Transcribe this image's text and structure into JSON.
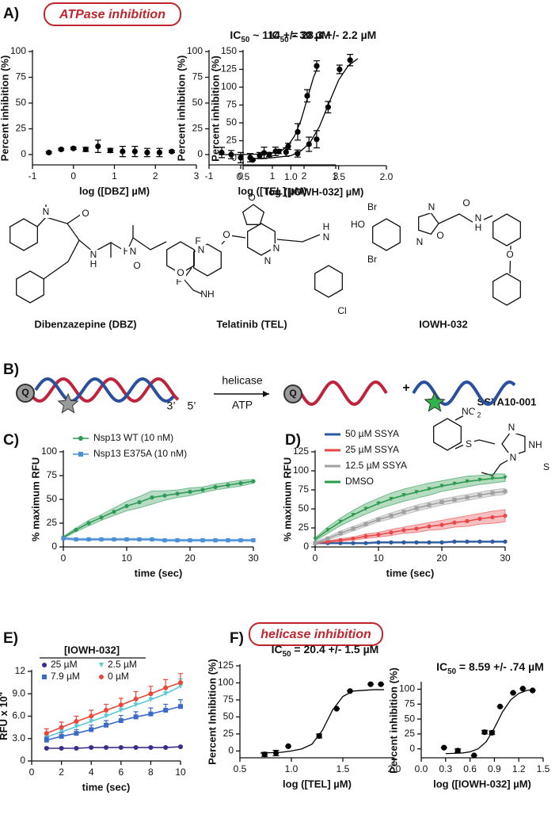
{
  "panels": [
    "A)",
    "B)",
    "C)",
    "D)",
    "E)",
    "F)"
  ],
  "badges": [
    "ATPase inhibition",
    "helicase inhibition"
  ],
  "scheme": {
    "labels": [
      "Q",
      "3’",
      "5’",
      "helicase",
      "ATP",
      "Q",
      "+"
    ]
  },
  "structures": [
    {
      "name": "Dibenzazepine (DBZ)",
      "atoms": [
        "N",
        "O",
        "N",
        "H",
        "H",
        "N",
        "O",
        "F",
        "F"
      ]
    },
    {
      "name": "Telatinib (TEL)",
      "atoms": [
        "O",
        "O",
        "N",
        "N",
        "N",
        "O",
        "NH",
        "H",
        "N",
        "Cl"
      ]
    },
    {
      "name": "IOWH-032",
      "atoms": [
        "Br",
        "HO",
        "Br",
        "N",
        "O",
        "N",
        "O",
        "N",
        "H",
        "O"
      ]
    },
    {
      "name": "SSYA10-001",
      "atoms": [
        "NO",
        "2",
        "S",
        "N",
        "NH",
        "N",
        "S"
      ]
    }
  ],
  "chart_data": [
    {
      "type": "scatter",
      "xlabel": "log ([DBZ] µM)",
      "ylabel": "Percent inhibition (%)",
      "color": "#000000",
      "x": [
        -0.6,
        -0.3,
        0,
        0.3,
        0.6,
        0.9,
        1.2,
        1.5,
        1.8,
        2.1,
        2.4
      ],
      "values": [
        2,
        5,
        6,
        5,
        8,
        4,
        3,
        3,
        2,
        2,
        3
      ],
      "errors": [
        1,
        1,
        1,
        2,
        6,
        2,
        5,
        5,
        4,
        4,
        1
      ],
      "xlim": [
        -1,
        3
      ],
      "xticks": [
        -1,
        0,
        1,
        2,
        3
      ],
      "ylim": [
        -10,
        100
      ],
      "yticks": [
        0,
        25,
        50,
        75,
        100
      ]
    },
    {
      "type": "scatter",
      "title_parts": [
        "IC",
        "50",
        " ~ 114 +/- 30 µM"
      ],
      "xlabel": "log ([TEL] µM)",
      "ylabel": "Percent inhibition (%)",
      "color": "#000000",
      "x": [
        -0.6,
        -0.3,
        0,
        0.3,
        0.6,
        0.9,
        1.2,
        1.5,
        1.8,
        2.1,
        2.4
      ],
      "values": [
        2,
        0,
        -3,
        -3,
        -1,
        0,
        3,
        8,
        22,
        57,
        86
      ],
      "errors": [
        5,
        4,
        5,
        4,
        3,
        2,
        2,
        3,
        8,
        6,
        5
      ],
      "fit": {
        "x": [
          -0.7,
          0,
          0.6,
          1.0,
          1.3,
          1.5,
          1.7,
          1.9,
          2.1,
          2.3,
          2.45
        ],
        "y": [
          0,
          0,
          0.5,
          1.5,
          4,
          9,
          18,
          33,
          54,
          75,
          86
        ]
      },
      "xlim": [
        -1,
        3
      ],
      "xticks": [
        -1,
        0,
        1,
        2,
        3
      ],
      "ylim": [
        -10,
        100
      ],
      "yticks": [
        0,
        25,
        50,
        75,
        100
      ]
    },
    {
      "type": "scatter",
      "title_parts": [
        "IC",
        "50",
        " = 28.3 +/- 2.2 µM"
      ],
      "xlabel": "log ([IOWH-032] µM)",
      "ylabel": "Percent inhibition (%)",
      "color": "#000000",
      "x": [
        0.6,
        0.72,
        0.84,
        0.95,
        1.07,
        1.19,
        1.27,
        1.39,
        1.51,
        1.62
      ],
      "values": [
        -2,
        8,
        10,
        9,
        7,
        20,
        27,
        72,
        125,
        138
      ],
      "errors": [
        1,
        8,
        6,
        6,
        5,
        10,
        12,
        8,
        6,
        8
      ],
      "fit": {
        "x": [
          0.6,
          0.8,
          1.0,
          1.1,
          1.2,
          1.3,
          1.4,
          1.5,
          1.6,
          1.7
        ],
        "y": [
          0,
          1,
          4,
          10,
          22,
          45,
          78,
          110,
          130,
          140
        ]
      },
      "xlim": [
        0.5,
        2.0
      ],
      "xticks": [
        0.5,
        {
          "value": 1.0,
          "label": "1.0"
        },
        1.5,
        {
          "value": 2.0,
          "label": "2.0"
        }
      ],
      "ylim": [
        -10,
        150
      ],
      "yticks": [
        0,
        25,
        50,
        75,
        100,
        125,
        150
      ]
    },
    {
      "type": "line",
      "xlabel": "time (sec)",
      "ylabel": "% maximum RFU",
      "error_style": "band",
      "legend": "upper-left",
      "x": [
        0,
        2,
        4,
        6,
        8,
        10,
        12,
        14,
        16,
        18,
        20,
        22,
        24,
        26,
        28,
        30
      ],
      "series": [
        {
          "name": "Nsp13 WT (10 nM)",
          "color": "#2e9a55",
          "marker": "circle",
          "values": [
            10,
            18,
            25,
            31,
            37,
            43,
            47,
            52,
            54,
            56,
            58,
            60,
            63,
            65,
            67,
            69
          ],
          "errors": [
            1,
            2,
            3,
            3,
            4,
            5,
            6,
            7,
            5,
            4,
            4,
            3,
            3,
            3,
            3,
            2
          ]
        },
        {
          "name": "Nsp13 E375A (10 nM)",
          "color": "#4a90d9",
          "marker": "square",
          "values": [
            9,
            8,
            8,
            8,
            8,
            8,
            8,
            8,
            7,
            7,
            7,
            7,
            7,
            7,
            7,
            7
          ],
          "errors": [
            1,
            1,
            1,
            1,
            1,
            1,
            1,
            1,
            1,
            1,
            1,
            1,
            1,
            1,
            1,
            1
          ]
        }
      ],
      "xlim": [
        0,
        30
      ],
      "xticks": [
        0,
        10,
        20,
        30
      ],
      "ylim": [
        0,
        100
      ],
      "yticks": [
        0,
        25,
        50,
        75,
        100
      ]
    },
    {
      "type": "line",
      "xlabel": "time (sec)",
      "ylabel": "% maximum RFU",
      "error_style": "band",
      "legend": "upper-left",
      "x": [
        0,
        2,
        4,
        6,
        8,
        10,
        12,
        14,
        16,
        18,
        20,
        22,
        24,
        26,
        28,
        30
      ],
      "series": [
        {
          "name": "50 µM SSYA",
          "color": "#2b5a9e",
          "marker": "circle",
          "values": [
            5,
            5,
            5,
            5,
            5,
            6,
            6,
            6,
            6,
            6,
            6,
            7,
            7,
            7,
            7,
            7
          ],
          "errors": [
            1,
            1,
            1,
            1,
            1,
            1,
            1,
            1,
            1,
            1,
            1,
            1,
            1,
            1,
            1,
            1
          ]
        },
        {
          "name": "25 µM SSYA",
          "color": "#e8474a",
          "marker": "circle",
          "values": [
            5,
            7,
            9,
            11,
            14,
            16,
            19,
            22,
            24,
            27,
            29,
            32,
            34,
            37,
            39,
            41
          ],
          "errors": [
            1,
            1,
            2,
            2,
            3,
            3,
            4,
            4,
            5,
            5,
            6,
            6,
            7,
            7,
            8,
            8
          ]
        },
        {
          "name": "12.5 µM SSYA",
          "color": "#a0a0a0",
          "marker": "square",
          "values": [
            5,
            11,
            18,
            24,
            30,
            36,
            41,
            46,
            51,
            55,
            59,
            62,
            65,
            68,
            71,
            73
          ],
          "errors": [
            2,
            2,
            3,
            3,
            3,
            3,
            4,
            4,
            4,
            4,
            4,
            4,
            4,
            4,
            4,
            4
          ]
        },
        {
          "name": "DMSO",
          "color": "#2a9a4a",
          "marker": "triangle-down",
          "values": [
            10,
            22,
            33,
            42,
            50,
            57,
            63,
            68,
            72,
            76,
            80,
            83,
            86,
            88,
            90,
            91
          ],
          "errors": [
            2,
            4,
            5,
            6,
            7,
            7,
            8,
            8,
            8,
            8,
            7,
            7,
            7,
            6,
            6,
            5
          ]
        }
      ],
      "xlim": [
        0,
        30
      ],
      "xticks": [
        0,
        10,
        20,
        30
      ],
      "ylim": [
        0,
        125
      ],
      "yticks": [
        0,
        25,
        50,
        75,
        100,
        125
      ]
    },
    {
      "type": "line",
      "xlabel": "time (sec)",
      "ylabel_parts": [
        "RFU x 10",
        "4"
      ],
      "legend_title": "[IOWH-032]",
      "error_style": "bars",
      "legend": "upper-left",
      "x": [
        1,
        2,
        3,
        4,
        5,
        6,
        7,
        8,
        9,
        10
      ],
      "series": [
        {
          "name": "25 µM",
          "color": "#3d2b8a",
          "marker": "circle",
          "values": [
            1.7,
            1.7,
            1.7,
            1.8,
            1.8,
            1.8,
            1.8,
            1.8,
            1.8,
            1.9
          ],
          "errors": [
            0.1,
            0.1,
            0.1,
            0.1,
            0.1,
            0.1,
            0.1,
            0.1,
            0.1,
            0.1
          ]
        },
        {
          "name": "2.5 µM",
          "color": "#5bc8d9",
          "marker": "triangle-down",
          "values": [
            3.2,
            3.9,
            4.6,
            5.3,
            6.0,
            6.8,
            7.5,
            8.2,
            9.0,
            10.0
          ],
          "errors": [
            0.5,
            0.6,
            0.6,
            0.7,
            0.7,
            0.8,
            0.8,
            0.9,
            0.9,
            1.0
          ]
        },
        {
          "name": "7.9 µM",
          "color": "#3a6cc7",
          "marker": "square",
          "values": [
            2.8,
            3.3,
            3.7,
            4.2,
            4.8,
            5.4,
            5.9,
            6.3,
            6.8,
            7.3
          ],
          "errors": [
            0.4,
            0.5,
            0.5,
            0.6,
            0.6,
            0.7,
            0.7,
            0.8,
            0.8,
            0.9
          ]
        },
        {
          "name": "0 µM",
          "color": "#e8473a",
          "marker": "circle",
          "values": [
            3.7,
            4.5,
            5.3,
            6.0,
            6.8,
            7.5,
            8.3,
            9.0,
            9.8,
            10.5
          ],
          "errors": [
            0.6,
            0.7,
            0.7,
            0.8,
            0.8,
            0.9,
            1.0,
            1.0,
            1.1,
            1.2
          ]
        }
      ],
      "xlim": [
        0,
        10
      ],
      "xticks": [
        0,
        2,
        4,
        6,
        8,
        10
      ],
      "ylim": [
        0,
        12
      ],
      "yticks": [
        0,
        {
          "value": 3,
          "label": "3.0"
        },
        {
          "value": 6,
          "label": "6.0"
        },
        {
          "value": 9,
          "label": "9.0"
        },
        12
      ]
    },
    {
      "type": "scatter",
      "title_parts": [
        "IC",
        "50",
        " = 20.4 +/- 1.5 µM"
      ],
      "xlabel": "log ([TEL] µM)",
      "ylabel": "Percent Inhibition (%)",
      "color": "#000000",
      "x": [
        0.74,
        0.85,
        0.97,
        1.27,
        1.44,
        1.57,
        1.77,
        1.87
      ],
      "values": [
        -5,
        -3,
        7,
        22,
        62,
        88,
        98,
        98
      ],
      "errors": [
        3,
        4,
        0,
        3,
        0,
        0,
        0,
        0
      ],
      "fit": {
        "x": [
          0.7,
          0.9,
          1.0,
          1.1,
          1.2,
          1.3,
          1.4,
          1.5,
          1.6,
          1.8,
          1.9
        ],
        "y": [
          -3,
          -2,
          0,
          3,
          10,
          30,
          60,
          80,
          88,
          90,
          90
        ]
      },
      "xlim": [
        0.5,
        2.0
      ],
      "xticks": [
        0.5,
        {
          "value": 1.0,
          "label": "1.0"
        },
        1.5,
        {
          "value": 2.0,
          "label": "2.0"
        }
      ],
      "ylim": [
        -10,
        125
      ],
      "yticks": [
        0,
        25,
        50,
        75,
        100,
        125
      ]
    },
    {
      "type": "scatter",
      "title_parts": [
        "IC",
        "50",
        " = 8.59 +/- .74 µM"
      ],
      "xlabel": "log ([IOWH-032] µM)",
      "ylabel": "Percent inhibition (%)",
      "color": "#000000",
      "x": [
        0.28,
        0.45,
        0.65,
        0.78,
        0.87,
        0.97,
        1.13,
        1.25,
        1.37
      ],
      "values": [
        2,
        -3,
        -11,
        28,
        27,
        71,
        94,
        101,
        98
      ],
      "errors": [
        0,
        3,
        0,
        3,
        3,
        0,
        0,
        0,
        0
      ],
      "fit": {
        "x": [
          0.3,
          0.5,
          0.6,
          0.7,
          0.8,
          0.9,
          1.0,
          1.1,
          1.2,
          1.3,
          1.4
        ],
        "y": [
          -8,
          -7,
          -5,
          0,
          12,
          35,
          62,
          82,
          93,
          98,
          100
        ]
      },
      "xlim": [
        0,
        1.5
      ],
      "xticks": [
        {
          "value": 0,
          "label": "0.0"
        },
        0.3,
        0.6,
        0.9,
        1.2,
        1.5
      ],
      "ylim": [
        -15,
        110
      ],
      "yticks": [
        0,
        25,
        50,
        75,
        100
      ]
    }
  ]
}
